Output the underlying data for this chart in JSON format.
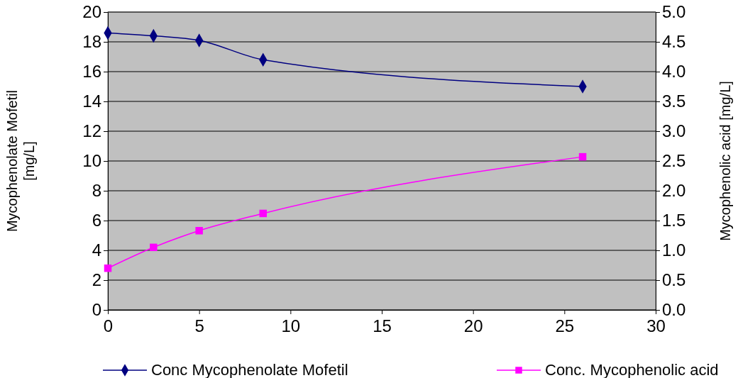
{
  "chart_data": {
    "type": "line",
    "ylabel": "Mycophenolate Mofetil [mg/L]",
    "y2label": "Mycophenolic acid [mg/L]",
    "xlim": [
      0,
      30
    ],
    "xticks": [
      0,
      5,
      10,
      15,
      20,
      25,
      30
    ],
    "ylim": [
      0,
      20
    ],
    "yticks": [
      0,
      2,
      4,
      6,
      8,
      10,
      12,
      14,
      16,
      18,
      20
    ],
    "y2lim": [
      0,
      5
    ],
    "y2ticks": [
      {
        "value": 0,
        "label": "0.0"
      },
      {
        "value": 0.5,
        "label": "0.5"
      },
      {
        "value": 1,
        "label": "1.0"
      },
      {
        "value": 1.5,
        "label": "1.5"
      },
      {
        "value": 2,
        "label": "2.0"
      },
      {
        "value": 2.5,
        "label": "2.5"
      },
      {
        "value": 3,
        "label": "3.0"
      },
      {
        "value": 3.5,
        "label": "3.5"
      },
      {
        "value": 4,
        "label": "4.0"
      },
      {
        "value": 4.5,
        "label": "4.5"
      },
      {
        "value": 5,
        "label": "5.0"
      }
    ],
    "grid": "y",
    "legend": "bottom",
    "series": [
      {
        "name": "Conc Mycophenolate Mofetil",
        "color": "#000080",
        "marker": "diamond",
        "x": [
          0,
          2.5,
          5,
          8.5,
          26
        ],
        "values": [
          18.6,
          18.4,
          18.1,
          16.8,
          15.0
        ]
      },
      {
        "name": "Conc. Mycophenolic acid",
        "color": "#ff00ff",
        "marker": "square",
        "axis": "y2",
        "x": [
          0,
          2.5,
          5,
          8.5,
          26
        ],
        "values": [
          0.7,
          1.05,
          1.33,
          1.62,
          2.57
        ]
      }
    ]
  }
}
